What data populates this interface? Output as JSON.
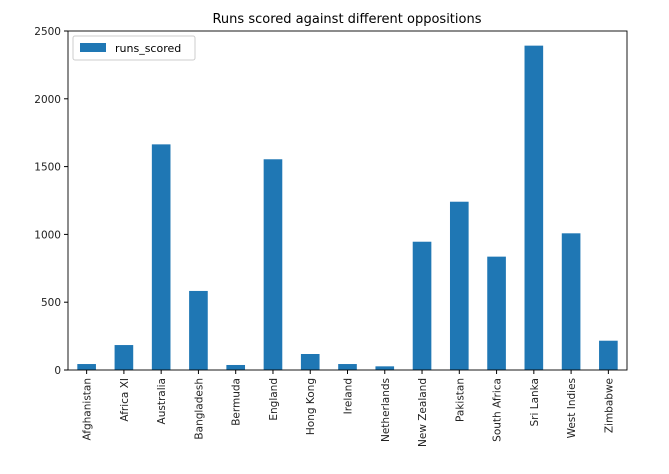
{
  "chart_data": {
    "type": "bar",
    "title": "Runs scored against different oppositions",
    "xlabel": "",
    "ylabel": "",
    "categories": [
      "Afghanistan",
      "Africa XI",
      "Australia",
      "Bangladesh",
      "Bermuda",
      "England",
      "Hong Kong",
      "Ireland",
      "Netherlands",
      "New Zealand",
      "Pakistan",
      "South Africa",
      "Sri Lanka",
      "West Indies",
      "Zimbabwe"
    ],
    "series": [
      {
        "name": "runs_scored",
        "color": "#1f77b4",
        "values": [
          44,
          184,
          1664,
          583,
          37,
          1554,
          118,
          44,
          27,
          946,
          1241,
          836,
          2392,
          1008,
          216
        ]
      }
    ],
    "ylim": [
      0,
      2500
    ],
    "yticks": [
      0,
      500,
      1000,
      1500,
      2000,
      2500
    ],
    "grid": false,
    "legend_position": "upper left"
  },
  "colors": {
    "bar": "#1f77b4",
    "axis": "#000000",
    "legend_border": "#cccccc"
  }
}
